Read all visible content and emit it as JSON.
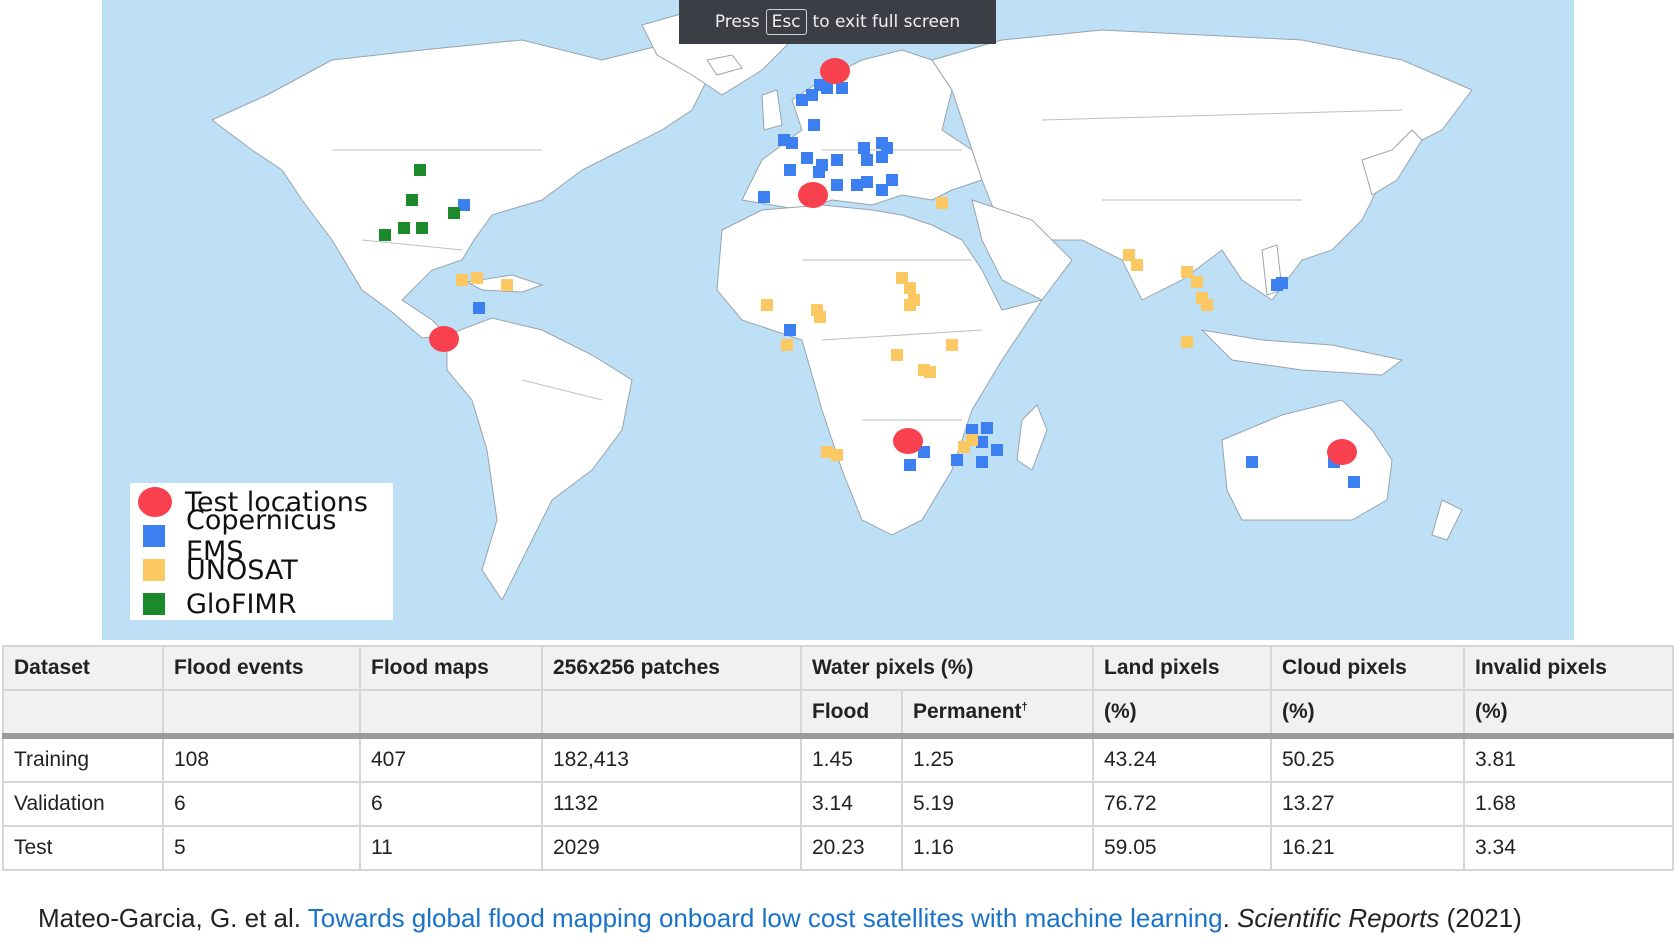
{
  "fullscreen_banner": {
    "prefix": "Press",
    "key": "Esc",
    "suffix": "to exit full screen"
  },
  "legend": [
    {
      "label": "Test locations",
      "color": "#f9404f",
      "shape": "circle"
    },
    {
      "label": "Copernicus EMS",
      "color": "#3b7ff0",
      "shape": "square"
    },
    {
      "label": "UNOSAT",
      "color": "#fcc862",
      "shape": "square"
    },
    {
      "label": "GloFIMR",
      "color": "#1b8a2b",
      "shape": "square"
    }
  ],
  "table": {
    "headers": [
      "Dataset",
      "Flood events",
      "Flood maps",
      "256x256 patches",
      "Water pixels (%)",
      "Land pixels",
      "Cloud pixels",
      "Invalid pixels"
    ],
    "subheaders": [
      "Flood",
      "Permanent",
      "(%)",
      "(%)",
      "(%)"
    ],
    "dagger": "†",
    "rows": [
      [
        "Training",
        "108",
        "407",
        "182,413",
        "1.45",
        "1.25",
        "43.24",
        "50.25",
        "3.81"
      ],
      [
        "Validation",
        "6",
        "6",
        "1132",
        "3.14",
        "5.19",
        "76.72",
        "13.27",
        "1.68"
      ],
      [
        "Test",
        "5",
        "11",
        "2029",
        "20.23",
        "1.16",
        "59.05",
        "16.21",
        "3.34"
      ]
    ]
  },
  "citation": {
    "authors": "Mateo-Garcia, G. et al.",
    "title": "Towards global flood mapping onboard low cost satellites with machine learning",
    "journal": "Scientific Reports",
    "year": "(2021)"
  }
}
